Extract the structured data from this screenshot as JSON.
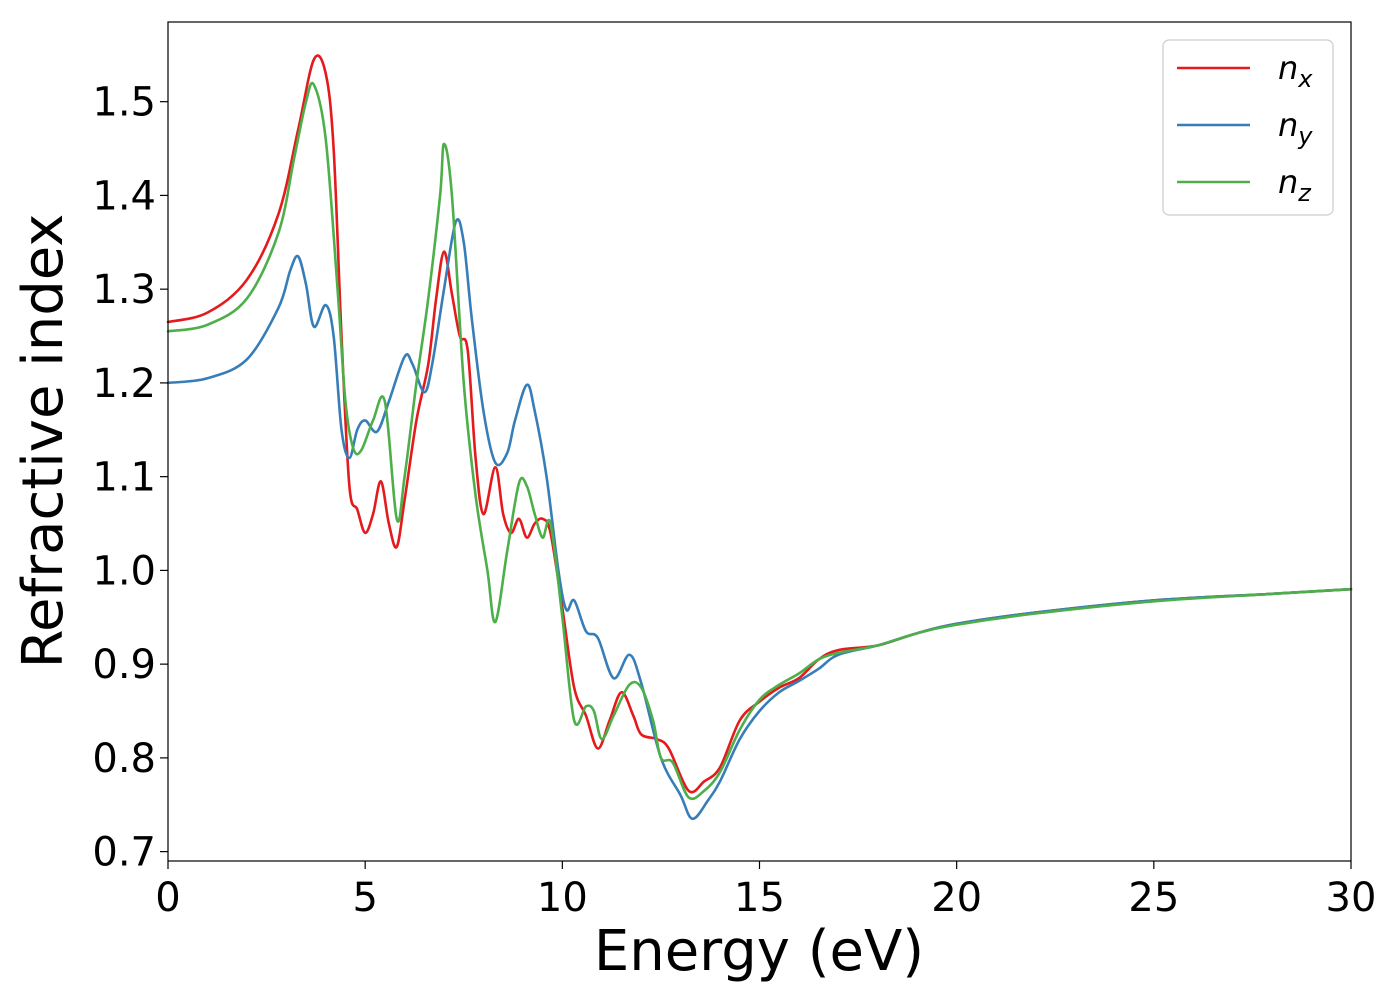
{
  "chart_data": {
    "type": "line",
    "title": "",
    "xlabel": "Energy (eV)",
    "ylabel": "Refractive index",
    "xlim": [
      0,
      30
    ],
    "ylim": [
      0.69,
      1.585
    ],
    "xticks": [
      0,
      5,
      10,
      15,
      20,
      25,
      30
    ],
    "yticks": [
      0.7,
      0.8,
      0.9,
      1.0,
      1.1,
      1.2,
      1.3,
      1.4,
      1.5
    ],
    "grid": false,
    "legend_position": "top-right",
    "series": [
      {
        "name": "n",
        "subscript": "x",
        "color": "#e41a1c",
        "points": [
          [
            0,
            1.265
          ],
          [
            1,
            1.275
          ],
          [
            2,
            1.31
          ],
          [
            2.8,
            1.38
          ],
          [
            3.3,
            1.47
          ],
          [
            3.7,
            1.545
          ],
          [
            4.0,
            1.53
          ],
          [
            4.2,
            1.45
          ],
          [
            4.4,
            1.25
          ],
          [
            4.6,
            1.09
          ],
          [
            4.8,
            1.065
          ],
          [
            5.0,
            1.04
          ],
          [
            5.2,
            1.06
          ],
          [
            5.4,
            1.095
          ],
          [
            5.6,
            1.05
          ],
          [
            5.8,
            1.025
          ],
          [
            6.0,
            1.075
          ],
          [
            6.3,
            1.16
          ],
          [
            6.6,
            1.22
          ],
          [
            6.8,
            1.29
          ],
          [
            7.0,
            1.34
          ],
          [
            7.2,
            1.295
          ],
          [
            7.4,
            1.25
          ],
          [
            7.6,
            1.235
          ],
          [
            7.8,
            1.12
          ],
          [
            8.0,
            1.06
          ],
          [
            8.3,
            1.11
          ],
          [
            8.5,
            1.06
          ],
          [
            8.7,
            1.04
          ],
          [
            8.9,
            1.055
          ],
          [
            9.1,
            1.035
          ],
          [
            9.3,
            1.05
          ],
          [
            9.5,
            1.055
          ],
          [
            9.7,
            1.04
          ],
          [
            10.0,
            0.96
          ],
          [
            10.3,
            0.875
          ],
          [
            10.6,
            0.845
          ],
          [
            10.9,
            0.81
          ],
          [
            11.2,
            0.84
          ],
          [
            11.5,
            0.87
          ],
          [
            11.8,
            0.845
          ],
          [
            12.0,
            0.825
          ],
          [
            12.4,
            0.82
          ],
          [
            12.7,
            0.81
          ],
          [
            13.2,
            0.765
          ],
          [
            13.6,
            0.775
          ],
          [
            14.0,
            0.79
          ],
          [
            14.5,
            0.84
          ],
          [
            15.0,
            0.86
          ],
          [
            15.5,
            0.875
          ],
          [
            16.0,
            0.885
          ],
          [
            16.5,
            0.905
          ],
          [
            17.0,
            0.915
          ],
          [
            18.0,
            0.92
          ],
          [
            19.0,
            0.933
          ],
          [
            20,
            0.943
          ],
          [
            22,
            0.955
          ],
          [
            25,
            0.968
          ],
          [
            28,
            0.975
          ],
          [
            30,
            0.98
          ]
        ]
      },
      {
        "name": "n",
        "subscript": "y",
        "color": "#377eb8",
        "points": [
          [
            0,
            1.2
          ],
          [
            1,
            1.205
          ],
          [
            2,
            1.225
          ],
          [
            2.8,
            1.28
          ],
          [
            3.1,
            1.32
          ],
          [
            3.3,
            1.335
          ],
          [
            3.5,
            1.305
          ],
          [
            3.7,
            1.26
          ],
          [
            4.0,
            1.283
          ],
          [
            4.2,
            1.25
          ],
          [
            4.4,
            1.15
          ],
          [
            4.6,
            1.12
          ],
          [
            4.8,
            1.15
          ],
          [
            5.0,
            1.16
          ],
          [
            5.3,
            1.148
          ],
          [
            5.6,
            1.18
          ],
          [
            6.0,
            1.228
          ],
          [
            6.2,
            1.22
          ],
          [
            6.5,
            1.19
          ],
          [
            6.7,
            1.22
          ],
          [
            7.0,
            1.3
          ],
          [
            7.3,
            1.372
          ],
          [
            7.5,
            1.35
          ],
          [
            7.7,
            1.27
          ],
          [
            8.0,
            1.17
          ],
          [
            8.3,
            1.115
          ],
          [
            8.6,
            1.125
          ],
          [
            8.8,
            1.16
          ],
          [
            9.1,
            1.198
          ],
          [
            9.3,
            1.17
          ],
          [
            9.6,
            1.1
          ],
          [
            9.9,
            1.0
          ],
          [
            10.1,
            0.958
          ],
          [
            10.3,
            0.968
          ],
          [
            10.6,
            0.935
          ],
          [
            10.9,
            0.928
          ],
          [
            11.3,
            0.885
          ],
          [
            11.7,
            0.91
          ],
          [
            12.0,
            0.88
          ],
          [
            12.5,
            0.8
          ],
          [
            13.0,
            0.76
          ],
          [
            13.3,
            0.735
          ],
          [
            13.7,
            0.755
          ],
          [
            14.0,
            0.775
          ],
          [
            14.5,
            0.82
          ],
          [
            15.0,
            0.85
          ],
          [
            15.5,
            0.87
          ],
          [
            16.0,
            0.882
          ],
          [
            16.5,
            0.895
          ],
          [
            17.0,
            0.91
          ],
          [
            18.0,
            0.92
          ],
          [
            19.0,
            0.933
          ],
          [
            20,
            0.943
          ],
          [
            22,
            0.955
          ],
          [
            25,
            0.968
          ],
          [
            28,
            0.975
          ],
          [
            30,
            0.98
          ]
        ]
      },
      {
        "name": "n",
        "subscript": "z",
        "color": "#4daf4a",
        "points": [
          [
            0,
            1.255
          ],
          [
            1,
            1.262
          ],
          [
            2,
            1.29
          ],
          [
            2.8,
            1.36
          ],
          [
            3.2,
            1.44
          ],
          [
            3.5,
            1.5
          ],
          [
            3.7,
            1.518
          ],
          [
            4.0,
            1.46
          ],
          [
            4.3,
            1.3
          ],
          [
            4.5,
            1.18
          ],
          [
            4.7,
            1.13
          ],
          [
            4.9,
            1.128
          ],
          [
            5.2,
            1.16
          ],
          [
            5.5,
            1.18
          ],
          [
            5.8,
            1.055
          ],
          [
            6.0,
            1.1
          ],
          [
            6.3,
            1.2
          ],
          [
            6.6,
            1.29
          ],
          [
            6.9,
            1.4
          ],
          [
            7.0,
            1.455
          ],
          [
            7.2,
            1.4
          ],
          [
            7.5,
            1.2
          ],
          [
            7.8,
            1.08
          ],
          [
            8.1,
            1.0
          ],
          [
            8.3,
            0.945
          ],
          [
            8.6,
            1.02
          ],
          [
            8.9,
            1.093
          ],
          [
            9.1,
            1.09
          ],
          [
            9.3,
            1.06
          ],
          [
            9.5,
            1.035
          ],
          [
            9.7,
            1.05
          ],
          [
            10.0,
            0.95
          ],
          [
            10.3,
            0.84
          ],
          [
            10.6,
            0.855
          ],
          [
            10.8,
            0.85
          ],
          [
            11.0,
            0.82
          ],
          [
            11.3,
            0.845
          ],
          [
            11.7,
            0.878
          ],
          [
            12.0,
            0.875
          ],
          [
            12.3,
            0.84
          ],
          [
            12.5,
            0.8
          ],
          [
            12.8,
            0.795
          ],
          [
            13.2,
            0.758
          ],
          [
            13.6,
            0.765
          ],
          [
            14.0,
            0.785
          ],
          [
            14.5,
            0.83
          ],
          [
            15.0,
            0.862
          ],
          [
            15.5,
            0.878
          ],
          [
            16.0,
            0.89
          ],
          [
            16.5,
            0.905
          ],
          [
            17.0,
            0.912
          ],
          [
            18.0,
            0.92
          ],
          [
            19.0,
            0.933
          ],
          [
            20,
            0.942
          ],
          [
            22,
            0.954
          ],
          [
            25,
            0.967
          ],
          [
            28,
            0.975
          ],
          [
            30,
            0.98
          ]
        ]
      }
    ]
  }
}
